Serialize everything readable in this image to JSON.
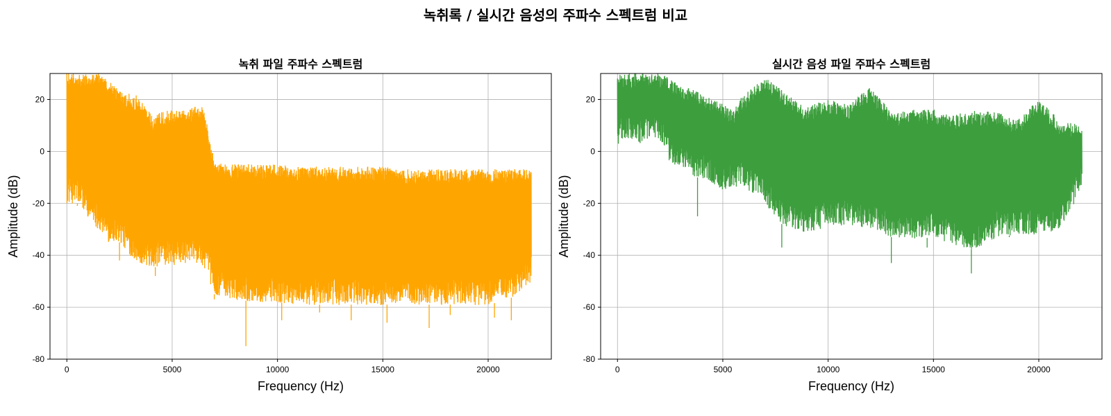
{
  "figure": {
    "suptitle": "녹취록 / 실시간 음성의 주파수 스펙트럼 비교"
  },
  "chart_data": [
    {
      "type": "line",
      "title": "녹취 파일 주파수 스펙트럼",
      "xlabel": "Frequency (Hz)",
      "ylabel": "Amplitude (dB)",
      "xlim": [
        -800,
        23000
      ],
      "ylim": [
        -80,
        30
      ],
      "xticks": [
        0,
        5000,
        10000,
        15000,
        20000
      ],
      "yticks": [
        -80,
        -60,
        -40,
        -20,
        0,
        20
      ],
      "xtick_labels": [
        "0",
        "5000",
        "10000",
        "15000",
        "20000"
      ],
      "ytick_labels": [
        "-80",
        "-60",
        "-40",
        "-20",
        "0",
        "20"
      ],
      "grid": true,
      "color": "#FFA500",
      "series": [
        {
          "x": [
            0,
            500,
            1000,
            1500,
            2000,
            2500,
            3000,
            3500,
            4000,
            4500,
            5000,
            5500,
            6000,
            6500,
            7000,
            7500,
            8000,
            9000,
            10000,
            11000,
            12000,
            13000,
            14000,
            15000,
            16000,
            17000,
            18000,
            19000,
            20000,
            21000,
            22050
          ],
          "upper": [
            30,
            30,
            30,
            30,
            28,
            24,
            22,
            21,
            14,
            15,
            16,
            16,
            17,
            17,
            -4,
            -5,
            -5,
            -5,
            -5,
            -6,
            -6,
            -6,
            -6,
            -6,
            -7,
            -7,
            -7,
            -7,
            -7,
            -7,
            -7
          ],
          "lower": [
            -20,
            -20,
            -25,
            -30,
            -35,
            -35,
            -40,
            -43,
            -45,
            -44,
            -44,
            -43,
            -43,
            -44,
            -55,
            -56,
            -57,
            -58,
            -58,
            -59,
            -59,
            -59,
            -59,
            -59,
            -59,
            -59,
            -59,
            -59,
            -59,
            -57,
            -50
          ],
          "min_spikes": [
            [
              500,
              -21
            ],
            [
              2500,
              -42
            ],
            [
              4200,
              -48
            ],
            [
              7000,
              -57
            ],
            [
              8500,
              -75
            ],
            [
              10200,
              -65
            ],
            [
              12000,
              -62
            ],
            [
              13500,
              -65
            ],
            [
              15200,
              -66
            ],
            [
              17200,
              -68
            ],
            [
              18200,
              -63
            ],
            [
              20300,
              -64
            ],
            [
              21100,
              -65
            ]
          ]
        }
      ]
    },
    {
      "type": "line",
      "title": "실시간 음성 파일 주파수 스펙트럼",
      "xlabel": "Frequency (Hz)",
      "ylabel": "Amplitude (dB)",
      "xlim": [
        -800,
        23000
      ],
      "ylim": [
        -80,
        30
      ],
      "xticks": [
        0,
        5000,
        10000,
        15000,
        20000
      ],
      "yticks": [
        -80,
        -60,
        -40,
        -20,
        0,
        20
      ],
      "xtick_labels": [
        "0",
        "5000",
        "10000",
        "15000",
        "20000"
      ],
      "ytick_labels": [
        "-80",
        "-60",
        "-40",
        "-20",
        "0",
        "20"
      ],
      "grid": true,
      "color": "#3D9E3D",
      "series": [
        {
          "x": [
            0,
            500,
            1000,
            1500,
            2000,
            2500,
            3000,
            3500,
            4000,
            4500,
            5000,
            5500,
            6000,
            6500,
            7000,
            7500,
            8000,
            9000,
            10000,
            11000,
            12000,
            13000,
            14000,
            15000,
            16000,
            17000,
            18000,
            19000,
            20000,
            21000,
            22050
          ],
          "upper": [
            30,
            30,
            30,
            30,
            30,
            28,
            25,
            24,
            22,
            20,
            18,
            16,
            22,
            25,
            28,
            26,
            22,
            17,
            20,
            18,
            25,
            15,
            16,
            16,
            14,
            16,
            15,
            12,
            20,
            12,
            10
          ],
          "lower": [
            2,
            5,
            3,
            5,
            5,
            -5,
            -5,
            -10,
            -10,
            -12,
            -15,
            -14,
            -14,
            -16,
            -20,
            -25,
            -30,
            -31,
            -29,
            -28,
            -30,
            -33,
            -34,
            -33,
            -36,
            -38,
            -33,
            -32,
            -32,
            -30,
            -15
          ],
          "min_spikes": [
            [
              3800,
              -25
            ],
            [
              7800,
              -37
            ],
            [
              13000,
              -43
            ],
            [
              14700,
              -37
            ],
            [
              16800,
              -47
            ],
            [
              18600,
              -33
            ]
          ]
        }
      ]
    }
  ]
}
